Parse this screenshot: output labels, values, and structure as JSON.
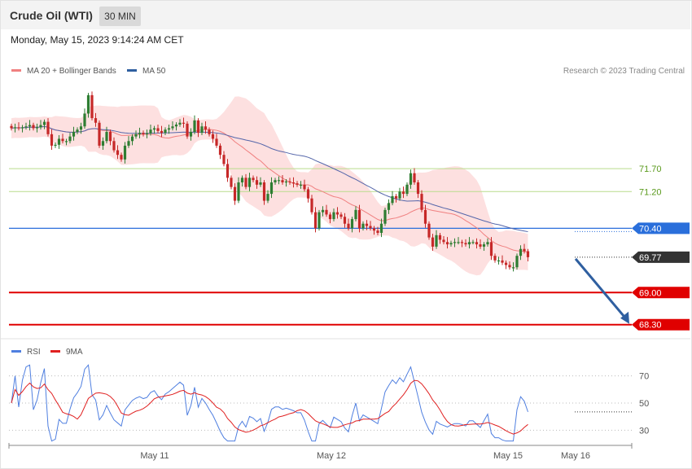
{
  "header": {
    "title": "Crude Oil (WTI)",
    "timeframe": "30 MIN",
    "date": "Monday, May 15, 2023 9:14:24 AM CET"
  },
  "legend": {
    "bollinger": "MA 20 + Bollinger Bands",
    "ma50": "MA 50",
    "copyright": "Research © 2023 Trading Central",
    "rsi": "RSI",
    "rsi_ma": "9MA"
  },
  "colors": {
    "bull": "#2e7d32",
    "bear": "#c62828",
    "band_fill": "#fde0e0",
    "ma20": "#f08080",
    "ma50": "#5566aa",
    "resistance_green": "#8bc34a",
    "pivot_blue": "#2a6fdb",
    "support_red": "#e00000",
    "price_tag": "#333333",
    "arrow": "#2f5fa0",
    "rsi_line": "#4f7fe0",
    "rsi_ma_line": "#e02020"
  },
  "chart_data": [
    {
      "type": "candlestick",
      "x_axis": {
        "labels": [
          "May 11",
          "May 12",
          "May 15",
          "May 16"
        ],
        "label_index": [
          22,
          70,
          118,
          140
        ]
      },
      "ylim": [
        68.1,
        73.6
      ],
      "levels": [
        {
          "value": 71.7,
          "label": "71.70",
          "kind": "resistance"
        },
        {
          "value": 71.2,
          "label": "71.20",
          "kind": "resistance"
        },
        {
          "value": 70.4,
          "label": "70.40",
          "kind": "pivot"
        },
        {
          "value": 69.77,
          "label": "69.77",
          "kind": "last"
        },
        {
          "value": 69.0,
          "label": "69.00",
          "kind": "support"
        },
        {
          "value": 68.3,
          "label": "68.30",
          "kind": "support"
        }
      ],
      "projection": {
        "from": [
          154,
          69.77
        ],
        "to": [
          166,
          68.3
        ]
      },
      "close": [
        72.58,
        72.6,
        72.58,
        72.6,
        72.62,
        72.65,
        72.58,
        72.6,
        72.65,
        72.72,
        72.45,
        72.2,
        72.22,
        72.35,
        72.3,
        72.3,
        72.4,
        72.5,
        72.55,
        72.62,
        72.9,
        73.3,
        72.8,
        72.7,
        72.2,
        72.3,
        72.5,
        72.3,
        72.1,
        72.0,
        71.9,
        72.2,
        72.3,
        72.4,
        72.45,
        72.48,
        72.45,
        72.47,
        72.55,
        72.58,
        72.52,
        72.48,
        72.55,
        72.58,
        72.62,
        72.66,
        72.7,
        72.68,
        72.4,
        72.5,
        72.75,
        72.48,
        72.62,
        72.55,
        72.45,
        72.35,
        72.2,
        72.0,
        71.8,
        71.5,
        71.3,
        71.0,
        71.4,
        71.5,
        71.3,
        71.5,
        71.45,
        71.35,
        71.4,
        71.0,
        71.15,
        71.4,
        71.45,
        71.45,
        71.4,
        71.42,
        71.4,
        71.38,
        71.35,
        71.35,
        71.25,
        71.05,
        70.75,
        70.4,
        70.75,
        70.8,
        70.7,
        70.6,
        70.75,
        70.7,
        70.65,
        70.5,
        70.4,
        70.6,
        70.8,
        70.4,
        70.5,
        70.45,
        70.4,
        70.35,
        70.3,
        70.5,
        70.8,
        70.95,
        71.1,
        71.05,
        71.2,
        71.15,
        71.35,
        71.6,
        71.4,
        71.15,
        70.8,
        70.5,
        70.2,
        70.0,
        70.25,
        70.15,
        70.1,
        70.05,
        70.08,
        70.1,
        70.1,
        70.08,
        70.05,
        70.1,
        70.1,
        70.05,
        70.0,
        70.05,
        70.1,
        69.8,
        69.7,
        69.7,
        69.65,
        69.6,
        69.55,
        69.55,
        69.8,
        69.95,
        69.9,
        69.77
      ],
      "open_step": 0.25
    },
    {
      "type": "line",
      "title": "RSI",
      "ylim": [
        20,
        80
      ],
      "ticks": [
        70,
        50,
        30
      ],
      "series": [
        {
          "name": "RSI"
        },
        {
          "name": "9MA"
        }
      ]
    }
  ]
}
